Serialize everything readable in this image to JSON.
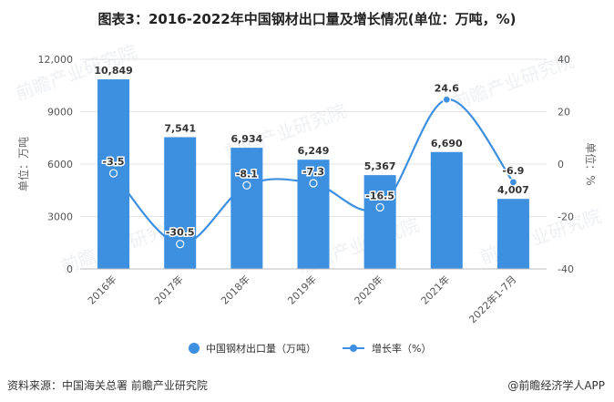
{
  "title": "图表3：2016-2022年中国钢材出口量及增长情况(单位：万吨，%)",
  "source": "资料来源：中国海关总署 前瞻产业研究院",
  "brand": "@前瞻经济学人APP",
  "watermark": "前瞻产业研究院",
  "colors": {
    "bar": "#3d8fe0",
    "line": "#3d8fe0",
    "grid": "#e3e3e3",
    "axis": "#bbbbbb"
  },
  "chart_data": {
    "type": "bar+line",
    "categories": [
      "2016年",
      "2017年",
      "2018年",
      "2019年",
      "2020年",
      "2021年",
      "2022年1-7月"
    ],
    "series": [
      {
        "name": "中国钢材出口量（万吨）",
        "type": "bar",
        "axis": "left",
        "values": [
          10849,
          7541,
          6934,
          6249,
          5367,
          6690,
          4007
        ],
        "labels": [
          "10,849",
          "7,541",
          "6,934",
          "6,249",
          "5,367",
          "6,690",
          "4,007"
        ]
      },
      {
        "name": "增长率（%）",
        "type": "line",
        "axis": "right",
        "values": [
          -3.5,
          -30.5,
          -8.1,
          -7.3,
          -16.5,
          24.6,
          -6.9
        ],
        "labels": [
          "-3.5",
          "-30.5",
          "-8.1",
          "-7.3",
          "-16.5",
          "24.6",
          "-6.9"
        ]
      }
    ],
    "ylabel_left": "单位：万吨",
    "ylabel_right": "单位：%",
    "ylim_left": [
      0,
      12000
    ],
    "ylim_right": [
      -40,
      40
    ],
    "yticks_left": [
      "0",
      "3000",
      "6000",
      "9000",
      "12,000"
    ],
    "yticks_right": [
      "-40",
      "-20",
      "0",
      "20",
      "40"
    ],
    "legend_position": "bottom",
    "grid": true
  }
}
